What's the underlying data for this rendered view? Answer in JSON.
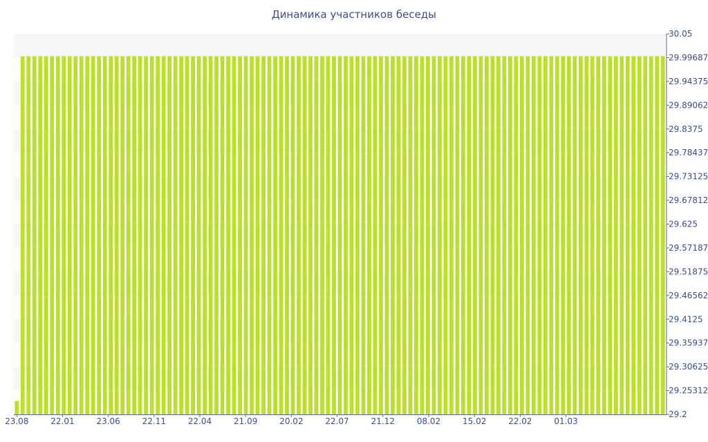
{
  "chart_data": {
    "type": "bar",
    "title": "Динамика участников беседы",
    "xlabel": "",
    "ylabel": "",
    "ylim": [
      29.2,
      30.05
    ],
    "y_axis_position": "right",
    "y_ticks": [
      "30.05",
      "29.99687",
      "29.94375",
      "29.89062",
      "29.8375",
      "29.78437",
      "29.73125",
      "29.67812",
      "29.625",
      "29.57187",
      "29.51875",
      "29.46562",
      "29.4125",
      "29.35937",
      "29.30625",
      "29.25312",
      "29.2"
    ],
    "x_tick_labels": [
      "23.08",
      "22.01",
      "23.06",
      "22.11",
      "22.04",
      "21.09",
      "20.02",
      "22.07",
      "21.12",
      "08.02",
      "15.02",
      "22.02",
      "01.03"
    ],
    "grid": "alternating horizontal bands",
    "bar_color": "#bbe02a",
    "bar_count": 111,
    "values": [
      29.23,
      30,
      30,
      30,
      30,
      30,
      30,
      30,
      30,
      30,
      30,
      30,
      30,
      30,
      30,
      30,
      30,
      30,
      30,
      30,
      30,
      30,
      30,
      30,
      30,
      30,
      30,
      30,
      30,
      30,
      30,
      30,
      30,
      30,
      30,
      30,
      30,
      30,
      30,
      30,
      30,
      30,
      30,
      30,
      30,
      30,
      30,
      30,
      30,
      30,
      30,
      30,
      30,
      30,
      30,
      30,
      30,
      30,
      30,
      30,
      30,
      30,
      30,
      30,
      30,
      30,
      30,
      30,
      30,
      30,
      30,
      30,
      30,
      30,
      30,
      30,
      30,
      30,
      30,
      30,
      30,
      30,
      30,
      30,
      30,
      30,
      30,
      30,
      30,
      30,
      30,
      30,
      30,
      30,
      30,
      30,
      30,
      30,
      30,
      30,
      30,
      30,
      30,
      30,
      30,
      30,
      30,
      30,
      30,
      30,
      30
    ]
  }
}
